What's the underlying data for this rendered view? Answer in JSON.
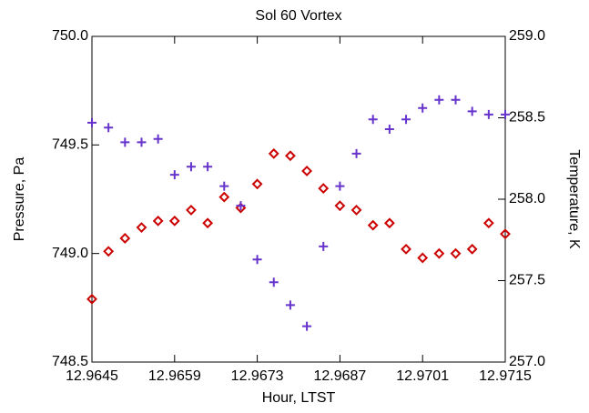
{
  "chart_data": {
    "type": "scatter",
    "title": "Sol 60 Vortex",
    "xlabel": "Hour, LTST",
    "ylabel": "Pressure, Pa",
    "y2label": "Temperature, K",
    "x": [
      12.9645,
      12.96478,
      12.96506,
      12.96534,
      12.96562,
      12.9659,
      12.96618,
      12.96646,
      12.96674,
      12.96702,
      12.9673,
      12.96758,
      12.96786,
      12.96814,
      12.96842,
      12.9687,
      12.96898,
      12.96926,
      12.96954,
      12.96982,
      12.9701,
      12.97038,
      12.97066,
      12.97094,
      12.97122,
      12.9715
    ],
    "series": [
      {
        "color": "#cc0000",
        "marker": "diamond",
        "values": [
          748.79,
          749.01,
          749.07,
          749.12,
          749.15,
          749.15,
          749.2,
          749.14,
          749.26,
          749.21,
          749.32,
          749.46,
          749.45,
          749.38,
          749.3,
          749.22,
          749.2,
          749.13,
          749.14,
          749.02,
          748.98,
          749.0,
          749.0,
          749.02,
          749.14,
          749.09
        ]
      },
      {
        "color": "#6633cc",
        "marker": "plus",
        "axis": "y2",
        "values": [
          258.47,
          258.44,
          258.35,
          258.35,
          258.37,
          258.15,
          258.2,
          258.2,
          258.08,
          257.96,
          257.63,
          257.49,
          257.35,
          257.22,
          257.71,
          258.08,
          258.28,
          258.49,
          258.43,
          258.49,
          258.56,
          258.61,
          258.61,
          258.54,
          258.52,
          258.52
        ]
      }
    ],
    "xlim": [
      12.9645,
      12.9715
    ],
    "xticks": [
      12.9645,
      12.9659,
      12.9673,
      12.9687,
      12.9701,
      12.9715
    ],
    "ylim": [
      748.5,
      750
    ],
    "yticks": [
      {
        "value": 748.5,
        "label": "748.5"
      },
      {
        "value": 749,
        "label": "749.0"
      },
      {
        "value": 749.5,
        "label": "749.5"
      },
      {
        "value": 750,
        "label": "750.0"
      }
    ],
    "y2lim": [
      257,
      259
    ],
    "y2ticks": [
      {
        "value": 257,
        "label": "257.0"
      },
      {
        "value": 257.5,
        "label": "257.5"
      },
      {
        "value": 258,
        "label": "258.0"
      },
      {
        "value": 258.5,
        "label": "258.5"
      },
      {
        "value": 259,
        "label": "259.0"
      }
    ]
  }
}
